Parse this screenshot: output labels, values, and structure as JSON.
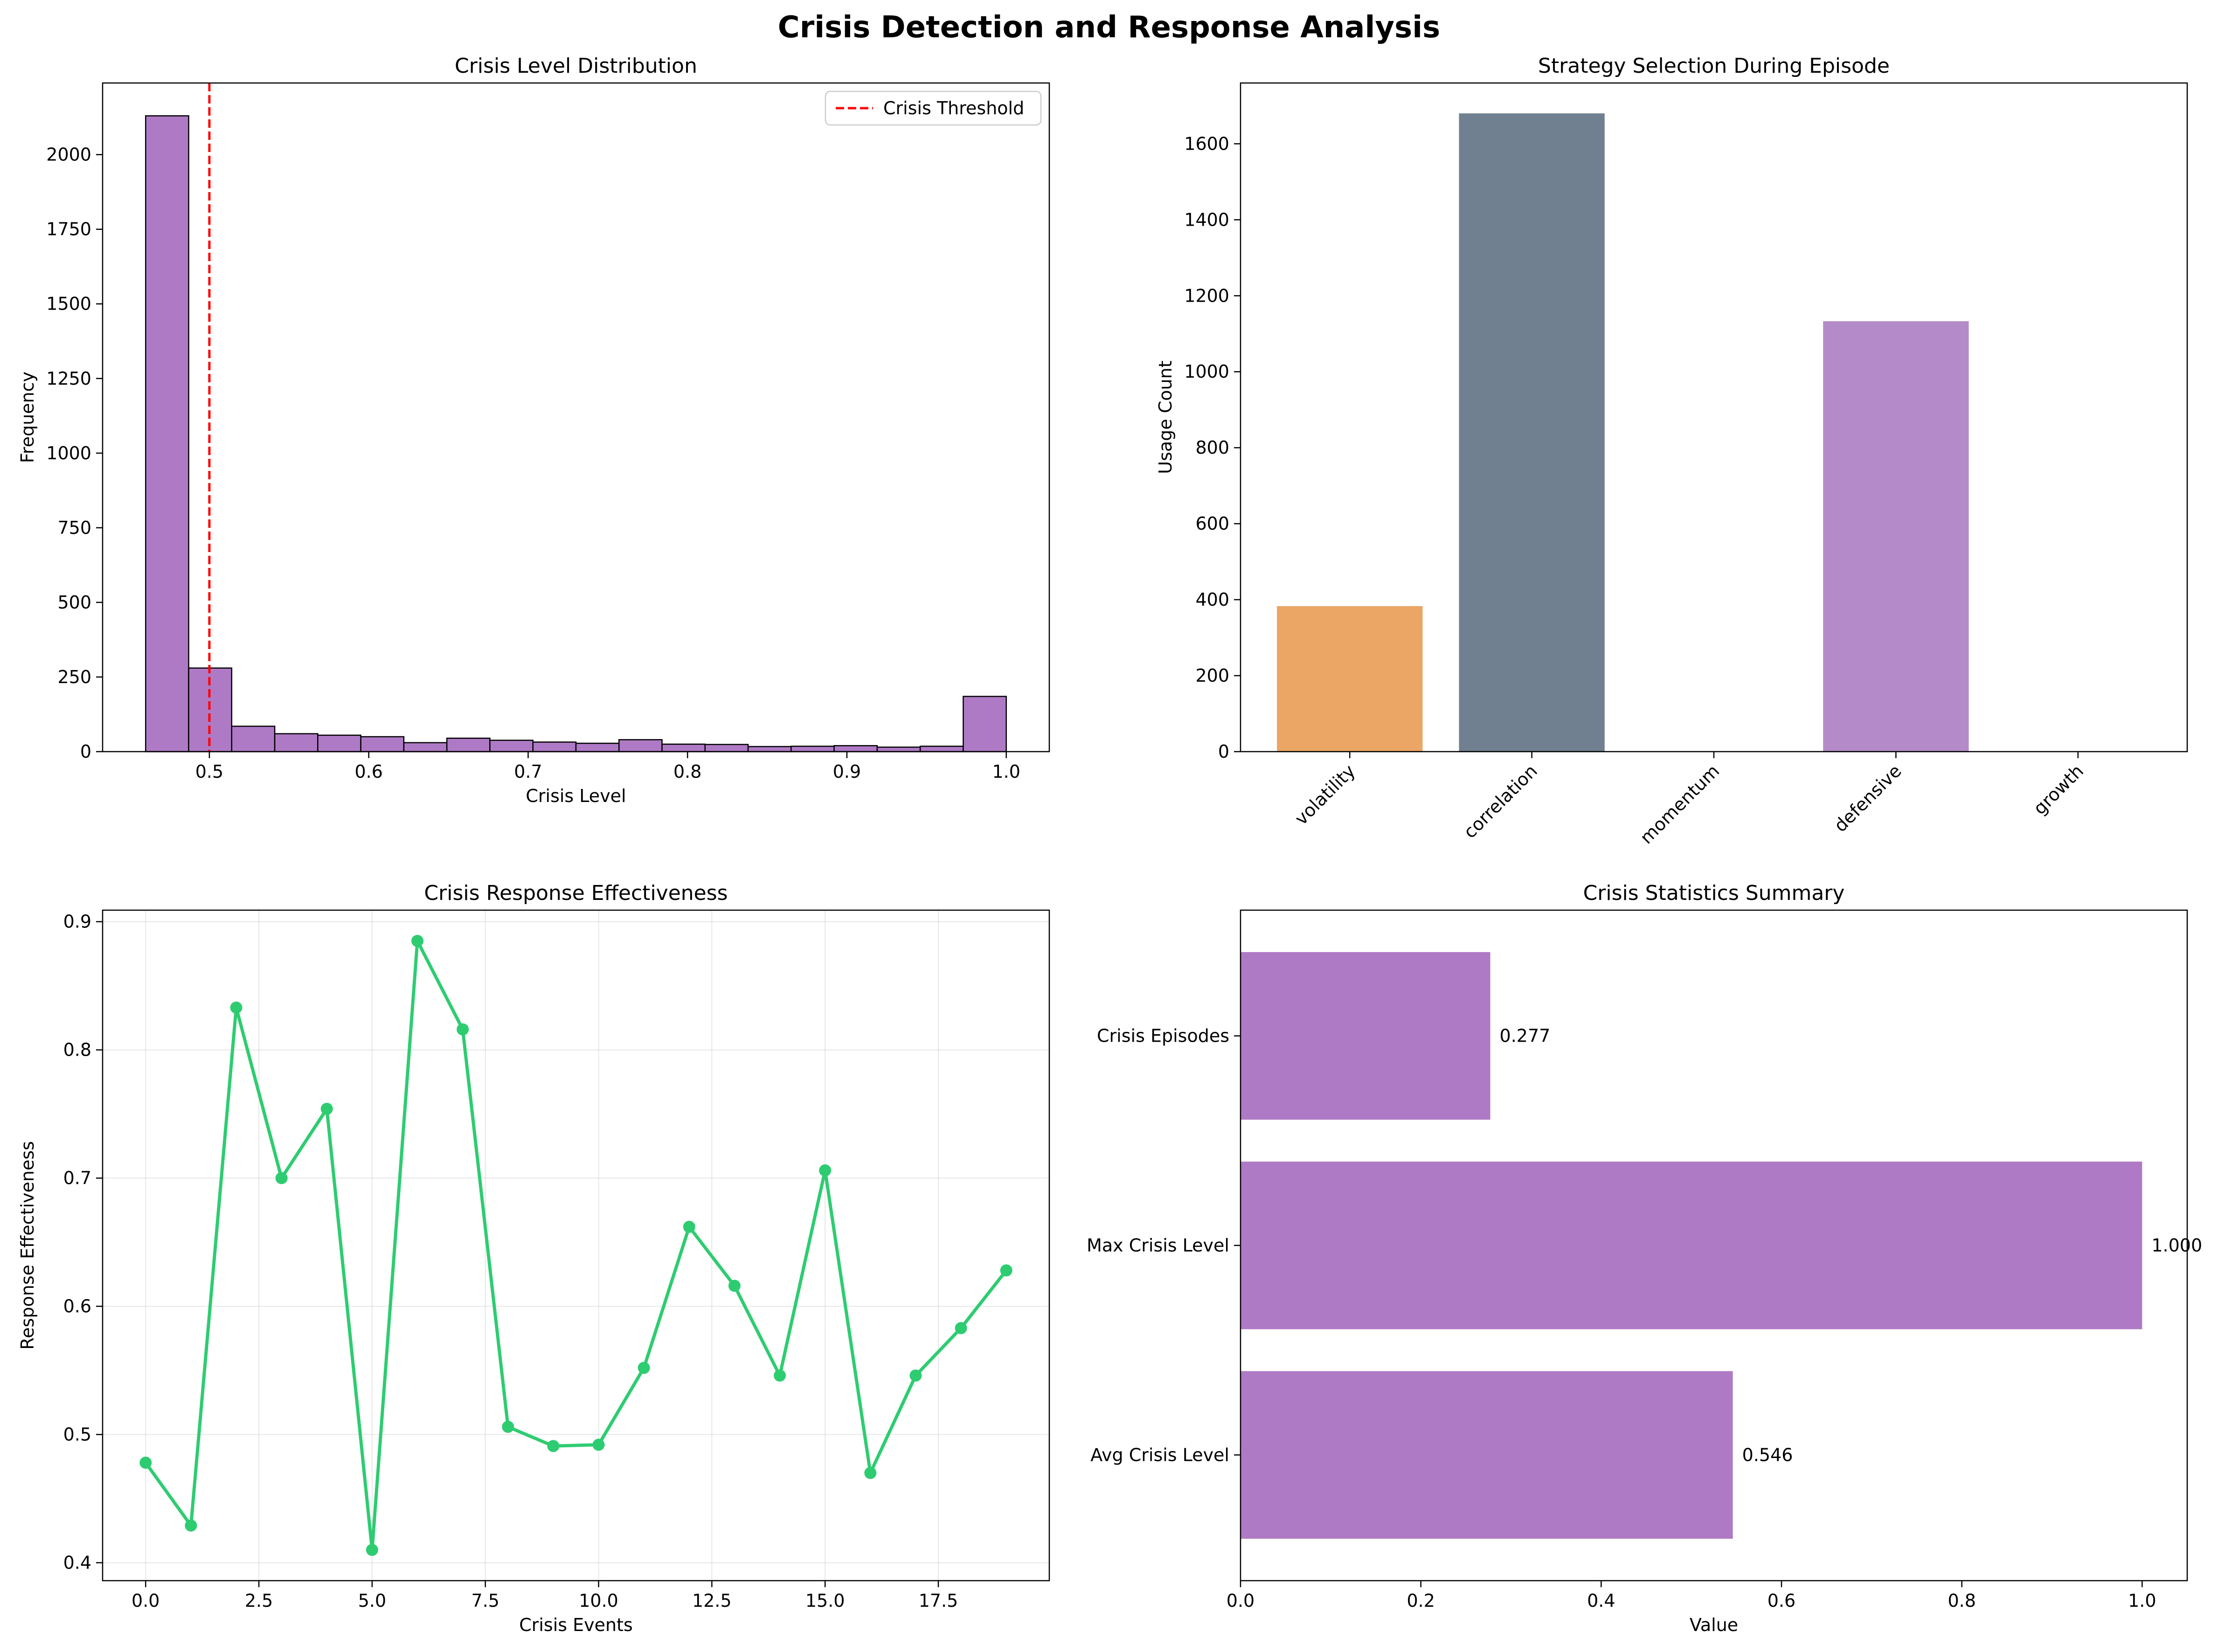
{
  "figure": {
    "title": "Crisis Detection and Response Analysis"
  },
  "chart_data": [
    {
      "type": "bar",
      "title": "Crisis Level Distribution",
      "xlabel": "Crisis Level",
      "ylabel": "Frequency",
      "xlim": [
        0.433,
        1.027
      ],
      "ylim": [
        0,
        2240
      ],
      "xticks": [
        "0.5",
        "0.6",
        "0.7",
        "0.8",
        "0.9",
        "1.0"
      ],
      "yticks": [
        "0",
        "250",
        "500",
        "750",
        "1000",
        "1250",
        "1500",
        "1750",
        "2000"
      ],
      "bin_start": 0.46,
      "bin_width": 0.027,
      "values": [
        2130,
        280,
        85,
        60,
        55,
        50,
        30,
        45,
        38,
        32,
        28,
        40,
        25,
        24,
        17,
        18,
        20,
        15,
        18,
        185
      ],
      "bar_color": "#af7ac5",
      "threshold": {
        "value": 0.5,
        "label": "Crisis Threshold",
        "color": "#ff0000"
      },
      "legend": "top-right"
    },
    {
      "type": "bar",
      "title": "Strategy Selection During Episode",
      "xlabel": "",
      "ylabel": "Usage Count",
      "ylim": [
        0,
        1760
      ],
      "yticks": [
        "0",
        "200",
        "400",
        "600",
        "800",
        "1000",
        "1200",
        "1400",
        "1600"
      ],
      "categories": [
        "volatility",
        "correlation",
        "momentum",
        "defensive",
        "growth"
      ],
      "values": [
        383,
        1680,
        0,
        1133,
        0
      ],
      "colors": [
        "#eba564",
        "#708090",
        "#708090",
        "#b48bc8",
        "#708090"
      ]
    },
    {
      "type": "line",
      "title": "Crisis Response Effectiveness",
      "xlabel": "Crisis Events",
      "ylabel": "Response Effectiveness",
      "xlim": [
        -0.95,
        19.95
      ],
      "ylim": [
        0.386,
        0.909
      ],
      "xticks": [
        "0.0",
        "2.5",
        "5.0",
        "7.5",
        "10.0",
        "12.5",
        "15.0",
        "17.5"
      ],
      "yticks": [
        "0.4",
        "0.5",
        "0.6",
        "0.7",
        "0.8",
        "0.9"
      ],
      "grid": true,
      "x": [
        0,
        1,
        2,
        3,
        4,
        5,
        6,
        7,
        8,
        9,
        10,
        11,
        12,
        13,
        14,
        15,
        16,
        17,
        18,
        19
      ],
      "y": [
        0.478,
        0.429,
        0.833,
        0.7,
        0.754,
        0.41,
        0.885,
        0.816,
        0.506,
        0.491,
        0.492,
        0.552,
        0.662,
        0.616,
        0.546,
        0.706,
        0.47,
        0.546,
        0.583,
        0.628
      ],
      "color": "#2ecc71"
    },
    {
      "type": "bar",
      "orientation": "horizontal",
      "title": "Crisis Statistics Summary",
      "xlabel": "Value",
      "ylabel": "",
      "xlim": [
        0,
        1.05
      ],
      "xticks": [
        "0.0",
        "0.2",
        "0.4",
        "0.6",
        "0.8",
        "1.0"
      ],
      "categories": [
        "Avg Crisis Level",
        "Max Crisis Level",
        "Crisis Episodes"
      ],
      "values": [
        0.546,
        1.0,
        0.277
      ],
      "data_labels": [
        "0.546",
        "1.000",
        "0.277"
      ],
      "bar_color": "#af7ac5"
    }
  ]
}
